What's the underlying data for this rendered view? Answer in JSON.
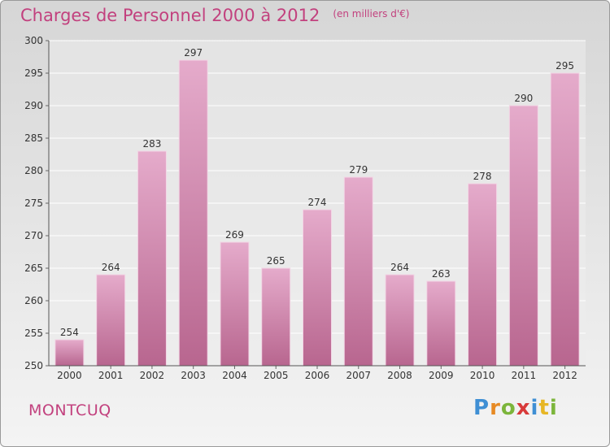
{
  "chart_data": {
    "type": "bar",
    "title": "Charges de Personnel 2000 à 2012",
    "unit_note": "(en milliers d'€)",
    "categories": [
      "2000",
      "2001",
      "2002",
      "2003",
      "2004",
      "2005",
      "2006",
      "2007",
      "2008",
      "2009",
      "2010",
      "2011",
      "2012"
    ],
    "values": [
      254,
      264,
      283,
      297,
      269,
      265,
      274,
      279,
      264,
      263,
      278,
      290,
      295
    ],
    "ylim": [
      250,
      300
    ],
    "yticks": [
      250,
      255,
      260,
      265,
      270,
      275,
      280,
      285,
      290,
      295,
      300
    ],
    "grid": true,
    "bar_color": "#d98cb5"
  },
  "place": "MONTCUQ",
  "logo": {
    "letters": [
      "P",
      "r",
      "o",
      "x",
      "i",
      "t",
      "i"
    ]
  },
  "colors": {
    "accent": "#c2417e",
    "bar_light": "#e5abcb",
    "bar_dark": "#b8668f"
  }
}
